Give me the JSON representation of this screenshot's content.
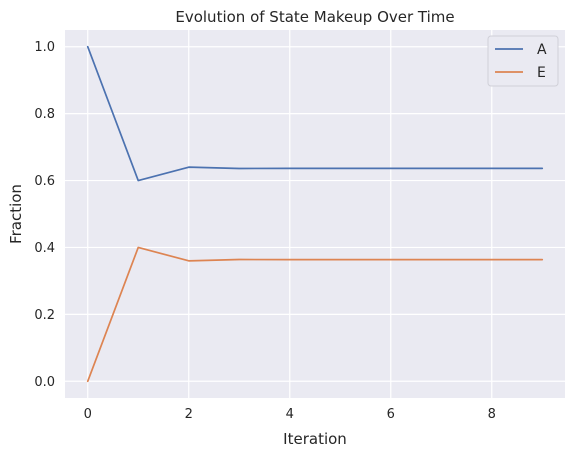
{
  "chart_data": {
    "type": "line",
    "title": "Evolution of State Makeup Over Time",
    "xlabel": "Iteration",
    "ylabel": "Fraction",
    "x": [
      0,
      1,
      2,
      3,
      4,
      5,
      6,
      7,
      8,
      9
    ],
    "series": [
      {
        "name": "A",
        "color": "#4c72b0",
        "values": [
          1.0,
          0.6,
          0.64,
          0.636,
          0.6364,
          0.6364,
          0.6364,
          0.6364,
          0.6364,
          0.6364
        ]
      },
      {
        "name": "E",
        "color": "#dd8452",
        "values": [
          0.0,
          0.4,
          0.36,
          0.364,
          0.3636,
          0.3636,
          0.3636,
          0.3636,
          0.3636,
          0.3636
        ]
      }
    ],
    "xlim": [
      -0.45,
      9.45
    ],
    "ylim": [
      -0.05,
      1.05
    ],
    "xticks": [
      0,
      2,
      4,
      6,
      8
    ],
    "yticks": [
      0.0,
      0.2,
      0.4,
      0.6,
      0.8,
      1.0
    ],
    "xtick_labels": [
      "0",
      "2",
      "4",
      "6",
      "8"
    ],
    "ytick_labels": [
      "0.0",
      "0.2",
      "0.4",
      "0.6",
      "0.8",
      "1.0"
    ],
    "grid": true,
    "legend_position": "top-right",
    "background_color": "#eaeaf2",
    "grid_color": "#ffffff"
  }
}
